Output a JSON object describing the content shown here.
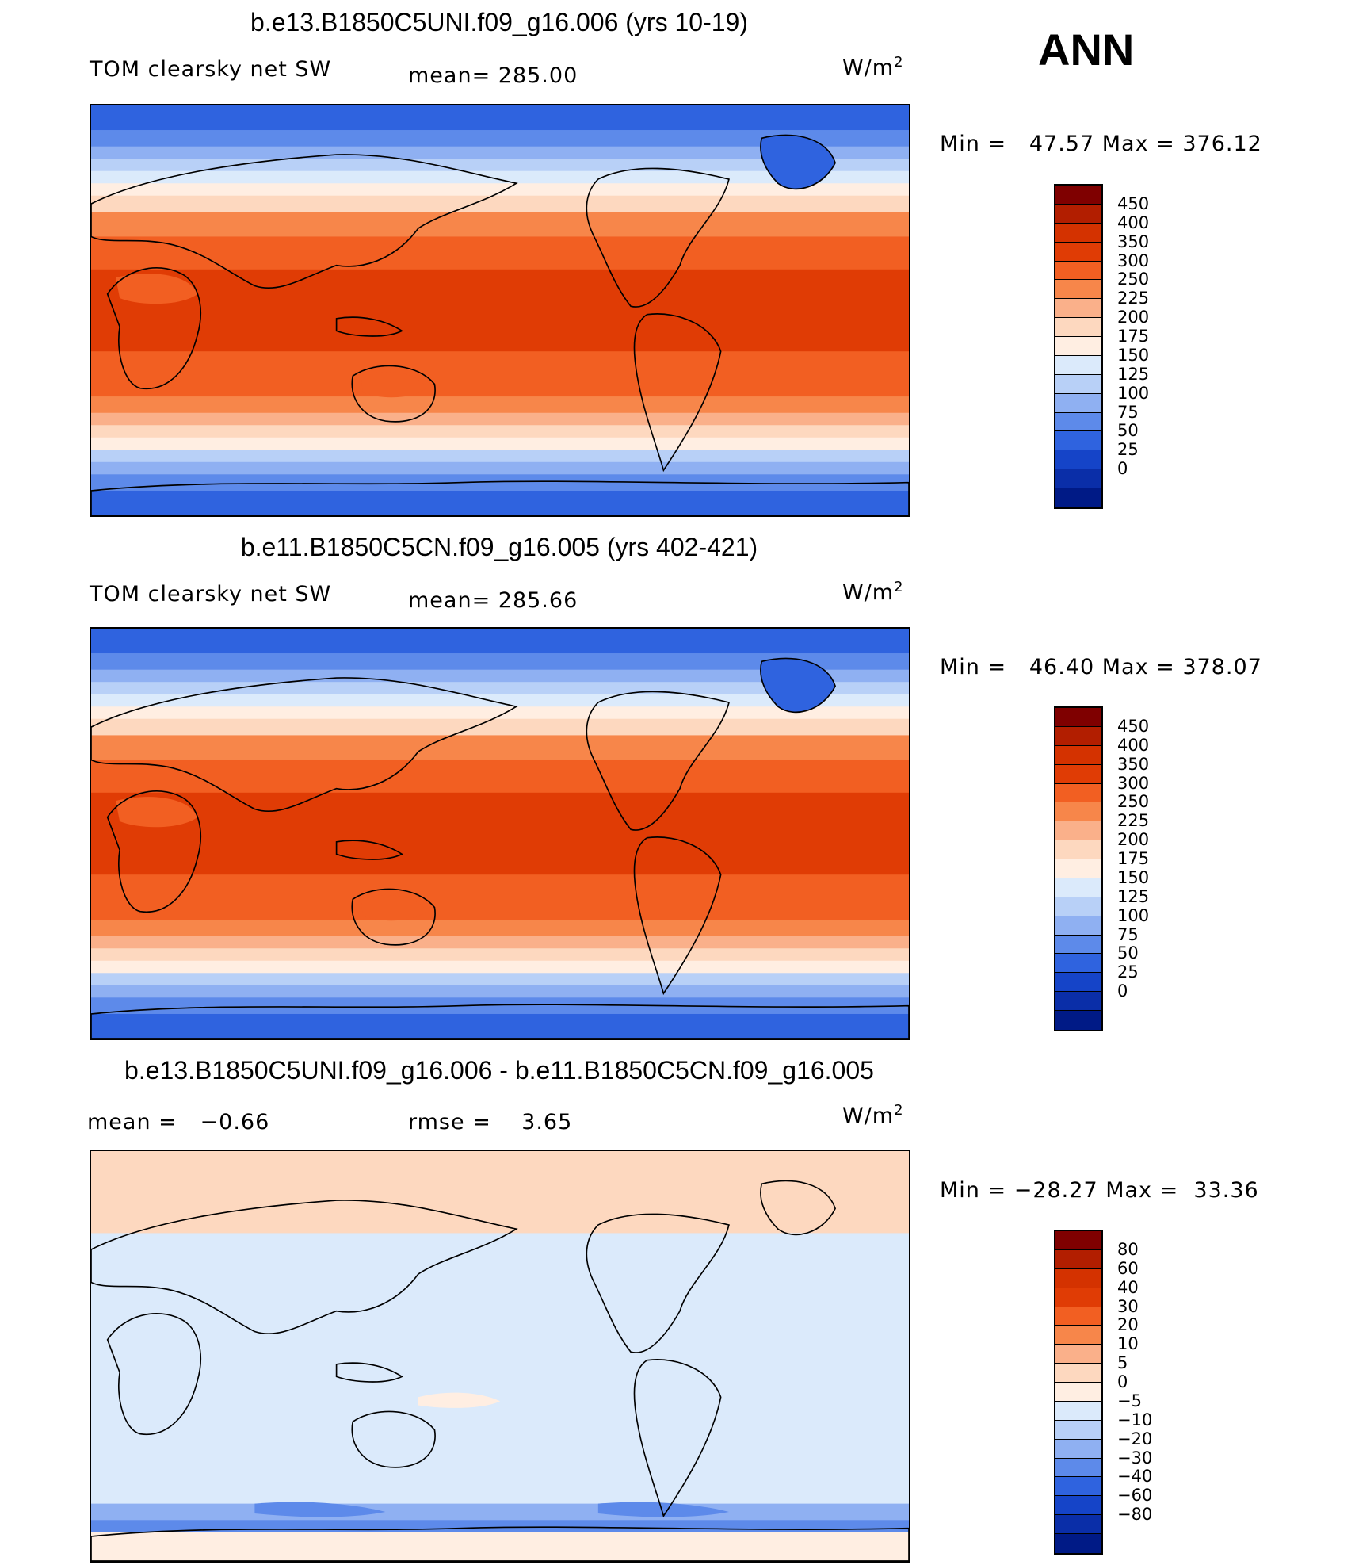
{
  "season": "ANN",
  "panels": [
    {
      "title": "b.e13.B1850C5UNI.f09_g16.006 (yrs 10-19)",
      "left_label": "TOM clearsky net SW",
      "center_label": "mean= 285.00",
      "units_base": "W/m",
      "units_exp": "2",
      "stats": "Min =   47.57 Max = 376.12",
      "field": "control",
      "colorbar_labels": [
        "450",
        "400",
        "350",
        "300",
        "250",
        "225",
        "200",
        "175",
        "150",
        "125",
        "100",
        "75",
        "50",
        "25",
        "0"
      ]
    },
    {
      "title": "b.e11.B1850C5CN.f09_g16.005 (yrs 402-421)",
      "left_label": "TOM clearsky net SW",
      "center_label": "mean= 285.66",
      "units_base": "W/m",
      "units_exp": "2",
      "stats": "Min =   46.40 Max = 378.07",
      "field": "control",
      "colorbar_labels": [
        "450",
        "400",
        "350",
        "300",
        "250",
        "225",
        "200",
        "175",
        "150",
        "125",
        "100",
        "75",
        "50",
        "25",
        "0"
      ]
    },
    {
      "title": "b.e13.B1850C5UNI.f09_g16.006 - b.e11.B1850C5CN.f09_g16.005",
      "left_label": "mean =   −0.66",
      "center_label": "rmse =    3.65",
      "units_base": "W/m",
      "units_exp": "2",
      "stats": "Min = −28.27 Max =  33.36",
      "field": "difference",
      "colorbar_labels": [
        "80",
        "60",
        "40",
        "30",
        "20",
        "10",
        "5",
        "0",
        "−5",
        "−10",
        "−20",
        "−30",
        "−40",
        "−60",
        "−80"
      ]
    }
  ],
  "colormap": [
    "#7f0000",
    "#b21e00",
    "#d43200",
    "#e03c05",
    "#f25f22",
    "#f7864a",
    "#fab08a",
    "#fdd8bf",
    "#ffeee2",
    "#dbeafb",
    "#b8d0f7",
    "#8fb0f2",
    "#5d8aea",
    "#2f63df",
    "#1544c8",
    "#0a2ea8",
    "#001a86"
  ]
}
